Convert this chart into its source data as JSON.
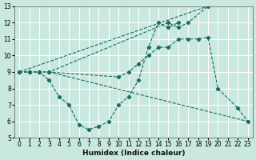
{
  "xlabel": "Humidex (Indice chaleur)",
  "xlim": [
    -0.5,
    23.5
  ],
  "ylim": [
    5,
    13
  ],
  "yticks": [
    5,
    6,
    7,
    8,
    9,
    10,
    11,
    12,
    13
  ],
  "xticks": [
    0,
    1,
    2,
    3,
    4,
    5,
    6,
    7,
    8,
    9,
    10,
    11,
    12,
    13,
    14,
    15,
    16,
    17,
    18,
    19,
    20,
    21,
    22,
    23
  ],
  "bg_color": "#c8e8e0",
  "line_color": "#1a6b5a",
  "grid_color": "#ffffff",
  "lines": [
    {
      "x": [
        0,
        1,
        2,
        3,
        15,
        16,
        17,
        19
      ],
      "y": [
        9,
        9,
        9,
        9,
        12.0,
        11.7,
        12.0,
        13.0
      ]
    },
    {
      "x": [
        0,
        1,
        2,
        3,
        10,
        11,
        12,
        13,
        14,
        15,
        16,
        17,
        18,
        19,
        20,
        22,
        23
      ],
      "y": [
        9,
        9,
        9,
        9,
        8.7,
        9.0,
        9.5,
        10.0,
        10.5,
        10.5,
        11.0,
        11.0,
        11.0,
        11.1,
        8.0,
        6.8,
        6.0
      ]
    },
    {
      "x": [
        0,
        1,
        2,
        3,
        4,
        5,
        6,
        7,
        8,
        9,
        10,
        11,
        12,
        13,
        14,
        15,
        16
      ],
      "y": [
        9,
        9,
        9,
        8.5,
        7.5,
        7.0,
        5.8,
        5.5,
        5.7,
        6.0,
        7.0,
        7.5,
        8.5,
        10.5,
        12.0,
        11.7,
        12.0
      ]
    }
  ],
  "diagonal_line": {
    "x": [
      0,
      19
    ],
    "y": [
      9,
      13
    ]
  },
  "lower_diagonal": {
    "x": [
      3,
      23
    ],
    "y": [
      9,
      6
    ]
  }
}
